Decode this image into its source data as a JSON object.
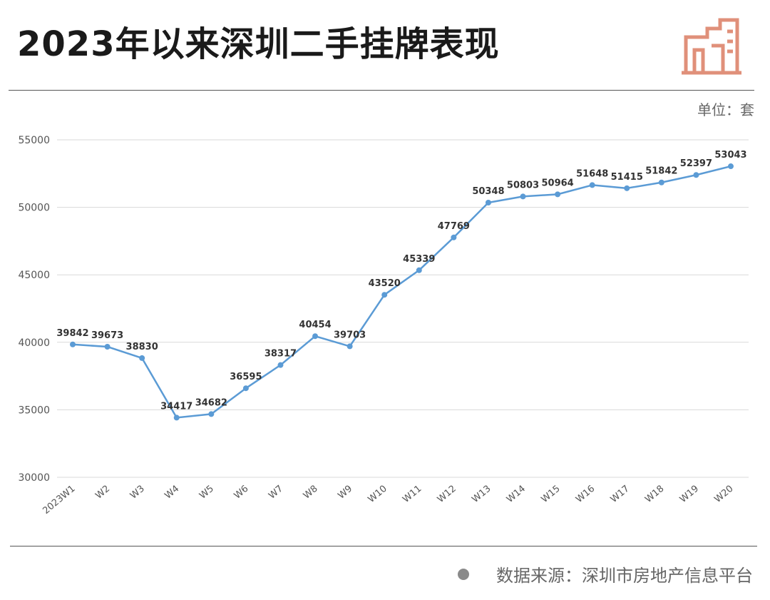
{
  "header": {
    "title": "2023年以来深圳二手挂牌表现"
  },
  "unit_label": "单位：套",
  "source": {
    "text": "数据来源：深圳市房地产信息平台"
  },
  "colors": {
    "line": "#5b9bd5",
    "logo": "#e0907a",
    "grid": "#d9d9d9"
  },
  "chart_data": {
    "type": "line",
    "title": "2023年以来深圳二手挂牌表现",
    "xlabel": "",
    "ylabel": "",
    "ylim": [
      30000,
      55000
    ],
    "yticks": [
      30000,
      35000,
      40000,
      45000,
      50000,
      55000
    ],
    "grid": true,
    "categories": [
      "2023W1",
      "W2",
      "W3",
      "W4",
      "W5",
      "W6",
      "W7",
      "W8",
      "W9",
      "W10",
      "W11",
      "W12",
      "W13",
      "W14",
      "W15",
      "W16",
      "W17",
      "W18",
      "W19",
      "W20"
    ],
    "series": [
      {
        "values": [
          39842,
          39673,
          38830,
          34417,
          34682,
          36595,
          38317,
          40454,
          39703,
          43520,
          45339,
          47769,
          50348,
          50803,
          50964,
          51648,
          51415,
          51842,
          52397,
          53043
        ]
      }
    ]
  }
}
